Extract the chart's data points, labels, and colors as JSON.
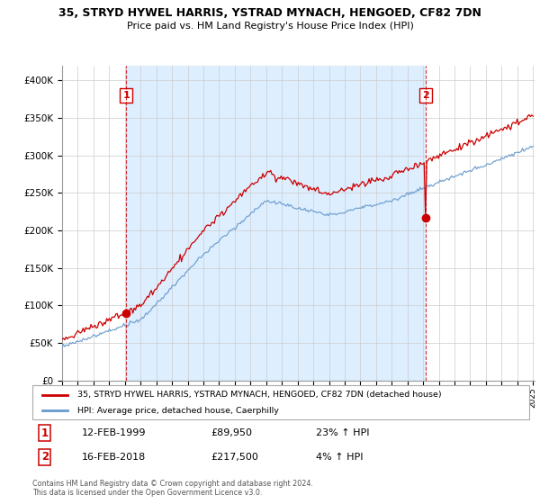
{
  "title_line1": "35, STRYD HYWEL HARRIS, YSTRAD MYNACH, HENGOED, CF82 7DN",
  "title_line2": "Price paid vs. HM Land Registry's House Price Index (HPI)",
  "legend_label1": "35, STRYD HYWEL HARRIS, YSTRAD MYNACH, HENGOED, CF82 7DN (detached house)",
  "legend_label2": "HPI: Average price, detached house, Caerphilly",
  "sale1_date": "12-FEB-1999",
  "sale1_price": 89950,
  "sale1_hpi_pct": "23% ↑ HPI",
  "sale2_date": "16-FEB-2018",
  "sale2_price": 217500,
  "sale2_hpi_pct": "4% ↑ HPI",
  "red_color": "#cc0000",
  "blue_color": "#6699cc",
  "shade_color": "#ddeeff",
  "marker_color": "#cc0000",
  "vline_color": "#cc0000",
  "background_color": "#ffffff",
  "grid_color": "#cccccc",
  "ylim": [
    0,
    420000
  ],
  "yticks": [
    0,
    50000,
    100000,
    150000,
    200000,
    250000,
    300000,
    350000,
    400000
  ],
  "xstart": 1995,
  "xend": 2025,
  "footer_line1": "Contains HM Land Registry data © Crown copyright and database right 2024.",
  "footer_line2": "This data is licensed under the Open Government Licence v3.0."
}
